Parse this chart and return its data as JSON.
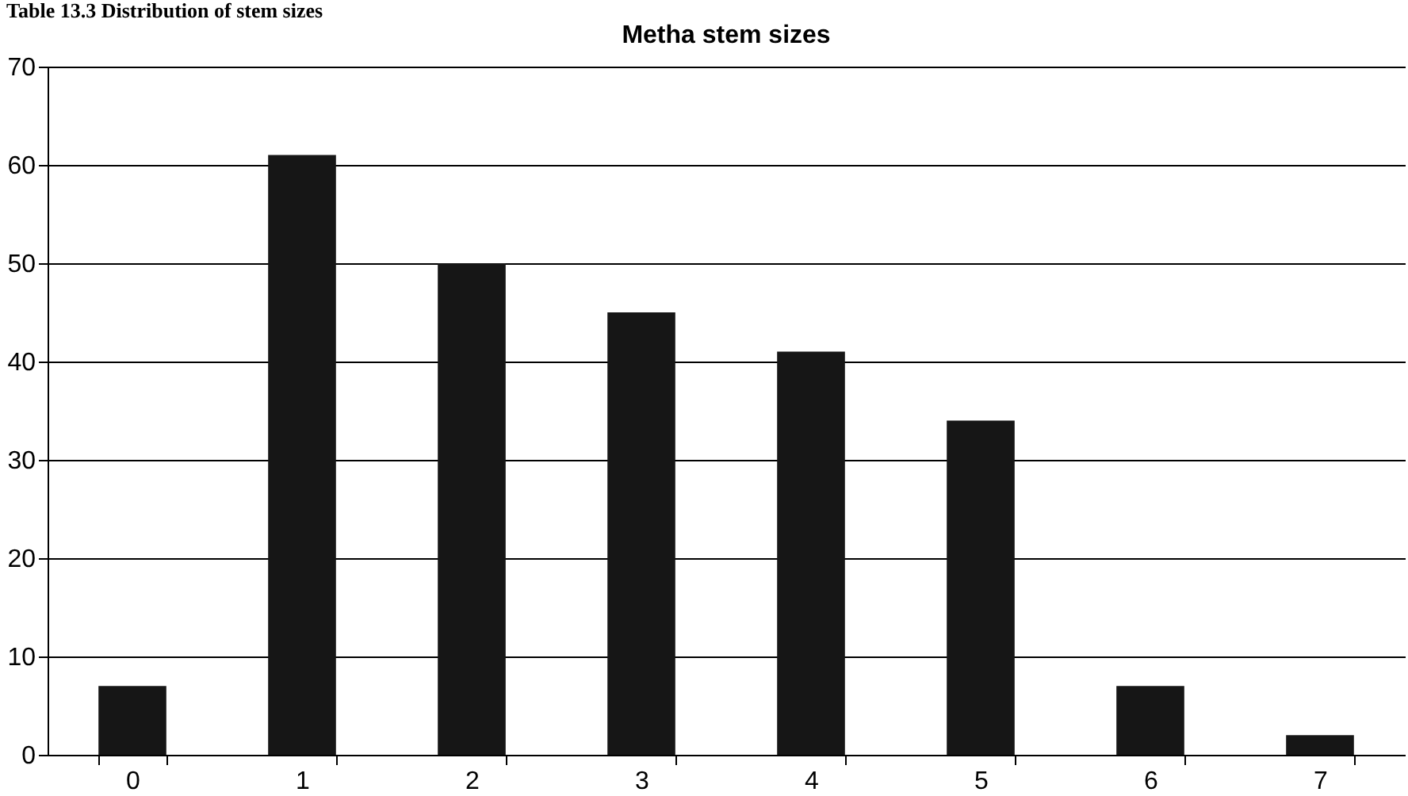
{
  "chart_data": {
    "type": "bar",
    "title": "Metha stem sizes",
    "annotations": [
      "Table 13.3  Distribution of stem sizes"
    ],
    "categories": [
      "0",
      "1",
      "2",
      "3",
      "4",
      "5",
      "6",
      "7"
    ],
    "values": [
      7,
      61,
      50,
      45,
      41,
      34,
      7,
      2
    ],
    "color": "#161616",
    "ylim": [
      0,
      70
    ],
    "yticks": [
      0,
      10,
      20,
      30,
      40,
      50,
      60,
      70
    ],
    "grid": "y"
  }
}
